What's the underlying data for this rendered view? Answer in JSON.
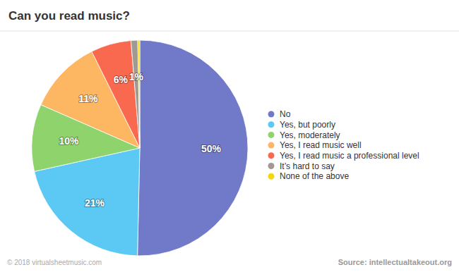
{
  "chart_data": {
    "type": "pie",
    "title": "Can you read music?",
    "categories": [
      "No",
      "Yes, but poorly",
      "Yes, moderately",
      "Yes, I read music well",
      "Yes, I read music a professional level",
      "It’s hard to say",
      "None of the above"
    ],
    "values": [
      50,
      21,
      10,
      11,
      6,
      1,
      0.3
    ],
    "value_labels": [
      "50%",
      "21%",
      "10%",
      "11%",
      "6%",
      "1%",
      null
    ],
    "colors": [
      "#7179c9",
      "#5bc9f4",
      "#8ed36c",
      "#fdb763",
      "#f8694f",
      "#a09a93",
      "#f3d70e"
    ],
    "data_labels": true,
    "legend": "right",
    "annotations": [
      "© 2018 virtualsheetmusic.com",
      "Source: intellectualtakeout.org"
    ]
  }
}
